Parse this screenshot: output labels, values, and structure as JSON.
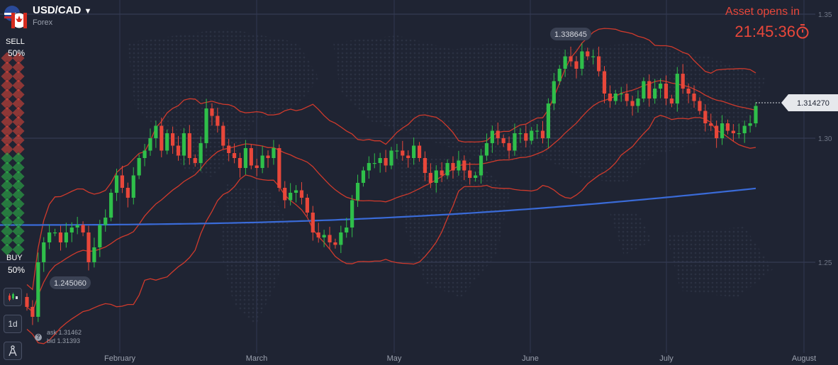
{
  "asset": {
    "name": "USD/CAD",
    "category": "Forex"
  },
  "sentiment": {
    "sell_label": "SELL",
    "sell_pct": "50%",
    "buy_label": "BUY",
    "buy_pct": "50%",
    "sell_color": "#e8473a",
    "buy_color": "#2f9e4a"
  },
  "tools": [
    {
      "name": "chart-type-button",
      "label": "",
      "icon": "candlestick-icon"
    },
    {
      "name": "timeframe-button",
      "label": "1d",
      "icon": ""
    },
    {
      "name": "drawing-tools-button",
      "label": "",
      "icon": "compass-icon"
    }
  ],
  "quote": {
    "ask": "ask 1.31462",
    "bid": "bid 1.31393"
  },
  "timer": {
    "label": "Asset opens in",
    "value": "21:45:36"
  },
  "price_tag": "1.314270",
  "colors": {
    "up": "#2fbf4a",
    "down": "#e8473a",
    "ma": "#3a6bd8",
    "bands": "#d03a2c",
    "background": "#1f2433"
  },
  "chart_data": {
    "type": "candlestick",
    "y_ticks": [
      "1.35",
      "1.30",
      "1.25"
    ],
    "y_tick_values": [
      1.35,
      1.3,
      1.25
    ],
    "ylim": [
      1.22,
      1.355
    ],
    "x_ticks": [
      "February",
      "March",
      "May",
      "June",
      "July",
      "August"
    ],
    "grid": true,
    "annotations": [
      {
        "text": "1.338645",
        "value": 1.338645
      },
      {
        "text": "1.245060",
        "value": 1.24506
      }
    ],
    "current_price": 1.31427,
    "moving_average_start": 1.265,
    "moving_average_end": 1.281,
    "closes": [
      1.232,
      1.228,
      1.25,
      1.258,
      1.262,
      1.262,
      1.258,
      1.262,
      1.264,
      1.265,
      1.262,
      1.25,
      1.256,
      1.265,
      1.268,
      1.278,
      1.285,
      1.28,
      1.276,
      1.285,
      1.292,
      1.295,
      1.3,
      1.305,
      1.295,
      1.302,
      1.297,
      1.293,
      1.302,
      1.292,
      1.29,
      1.298,
      1.312,
      1.309,
      1.305,
      1.297,
      1.294,
      1.292,
      1.288,
      1.296,
      1.289,
      1.288,
      1.293,
      1.292,
      1.296,
      1.28,
      1.275,
      1.278,
      1.279,
      1.276,
      1.27,
      1.262,
      1.26,
      1.261,
      1.258,
      1.257,
      1.262,
      1.264,
      1.275,
      1.282,
      1.287,
      1.29,
      1.29,
      1.292,
      1.289,
      1.295,
      1.295,
      1.293,
      1.292,
      1.297,
      1.292,
      1.286,
      1.282,
      1.287,
      1.285,
      1.29,
      1.287,
      1.291,
      1.287,
      1.284,
      1.285,
      1.293,
      1.298,
      1.303,
      1.3,
      1.298,
      1.295,
      1.302,
      1.302,
      1.299,
      1.303,
      1.303,
      1.3,
      1.314,
      1.323,
      1.328,
      1.333,
      1.331,
      1.328,
      1.335,
      1.333,
      1.333,
      1.327,
      1.318,
      1.315,
      1.318,
      1.318,
      1.315,
      1.313,
      1.316,
      1.323,
      1.316,
      1.32,
      1.322,
      1.316,
      1.314,
      1.326,
      1.32,
      1.318,
      1.315,
      1.311,
      1.306,
      1.305,
      1.3,
      1.306,
      1.303,
      1.302,
      1.302,
      1.305,
      1.306,
      1.313
    ]
  }
}
